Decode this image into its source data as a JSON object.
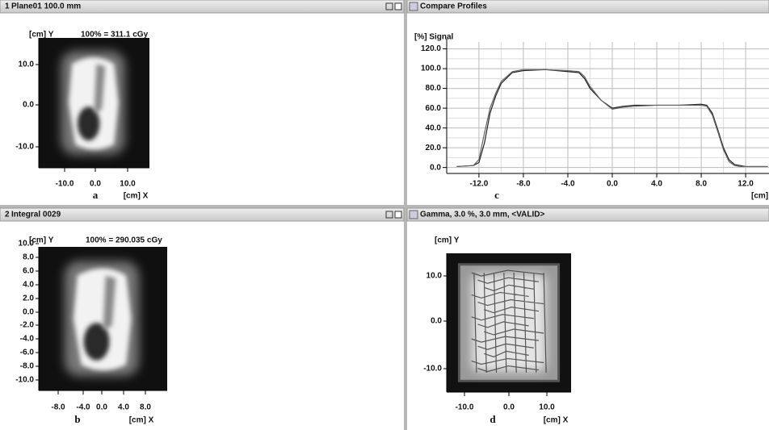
{
  "panels": [
    {
      "index": "1",
      "title": "Plane01 100.0 mm",
      "y_label": "[cm] Y",
      "norm": "100% = 311.1 cGy",
      "yticks": [
        "10.0",
        "0.0",
        "-10.0"
      ],
      "xticks": [
        "-10.0",
        "0.0",
        "10.0"
      ],
      "x_label": "[cm] X",
      "caption": "a"
    },
    {
      "index": "2",
      "title": "Integral 0029",
      "y_label": "[cm] Y",
      "norm": "100% = 290.035 cGy",
      "yticks": [
        "10.0",
        "8.0",
        "6.0",
        "4.0",
        "2.0",
        "0.0",
        "-2.0",
        "-4.0",
        "-6.0",
        "-8.0",
        "-10.0"
      ],
      "xticks": [
        "-8.0",
        "-4.0",
        "0.0",
        "4.0",
        "8.0"
      ],
      "x_label": "[cm] X",
      "caption": "b"
    },
    {
      "title": "Gamma, 3.0 %, 3.0 mm, <VALID>",
      "y_label": "[cm] Y",
      "yticks": [
        "10.0",
        "0.0",
        "-10.0"
      ],
      "xticks": [
        "-10.0",
        "0.0",
        "10.0"
      ],
      "x_label": "[cm] X",
      "caption": "d"
    }
  ],
  "profiles": {
    "type": "line",
    "title": "Compare Profiles",
    "y_label": "[%] Signal",
    "x_label": "[cm]",
    "caption": "c",
    "xlim": [
      -14.9,
      14.1
    ],
    "ylim": [
      -6,
      127
    ],
    "xticks": [
      {
        "value": -12,
        "label": "-12.0"
      },
      {
        "value": -8,
        "label": "-8.0"
      },
      {
        "value": -4,
        "label": "-4.0"
      },
      {
        "value": 0,
        "label": "0.0"
      },
      {
        "value": 4,
        "label": "4.0"
      },
      {
        "value": 8,
        "label": "8.0"
      },
      {
        "value": 12,
        "label": "12.0"
      }
    ],
    "yticks": [
      {
        "value": 0,
        "label": "0.0"
      },
      {
        "value": 20,
        "label": "20.0"
      },
      {
        "value": 40,
        "label": "40.0"
      },
      {
        "value": 60,
        "label": "60.0"
      },
      {
        "value": 80,
        "label": "80.0"
      },
      {
        "value": 100,
        "label": "100.0"
      },
      {
        "value": 120,
        "label": "120.0"
      }
    ],
    "x": [
      -14,
      -12.5,
      -12,
      -11.5,
      -11,
      -10.5,
      -10,
      -9,
      -8,
      -6,
      -4,
      -3,
      -2.5,
      -2,
      -1,
      0,
      1,
      2,
      4,
      6,
      8,
      8.5,
      9,
      9.5,
      10,
      10.5,
      11,
      11.5,
      12,
      13,
      14
    ],
    "series": [
      {
        "color": "#222222",
        "values": [
          1,
          2,
          5,
          25,
          55,
          72,
          85,
          96,
          98,
          99,
          97,
          96,
          90,
          80,
          68,
          60,
          62,
          63,
          63,
          63,
          64,
          63,
          55,
          38,
          20,
          8,
          3,
          2,
          1,
          1,
          1
        ]
      },
      {
        "color": "#666666",
        "values": [
          1,
          2,
          8,
          35,
          60,
          75,
          87,
          97,
          99,
          99,
          98,
          97,
          92,
          82,
          68,
          59,
          61,
          62,
          63,
          63,
          63,
          62,
          53,
          36,
          18,
          6,
          2,
          1,
          1,
          1,
          1
        ]
      }
    ]
  }
}
